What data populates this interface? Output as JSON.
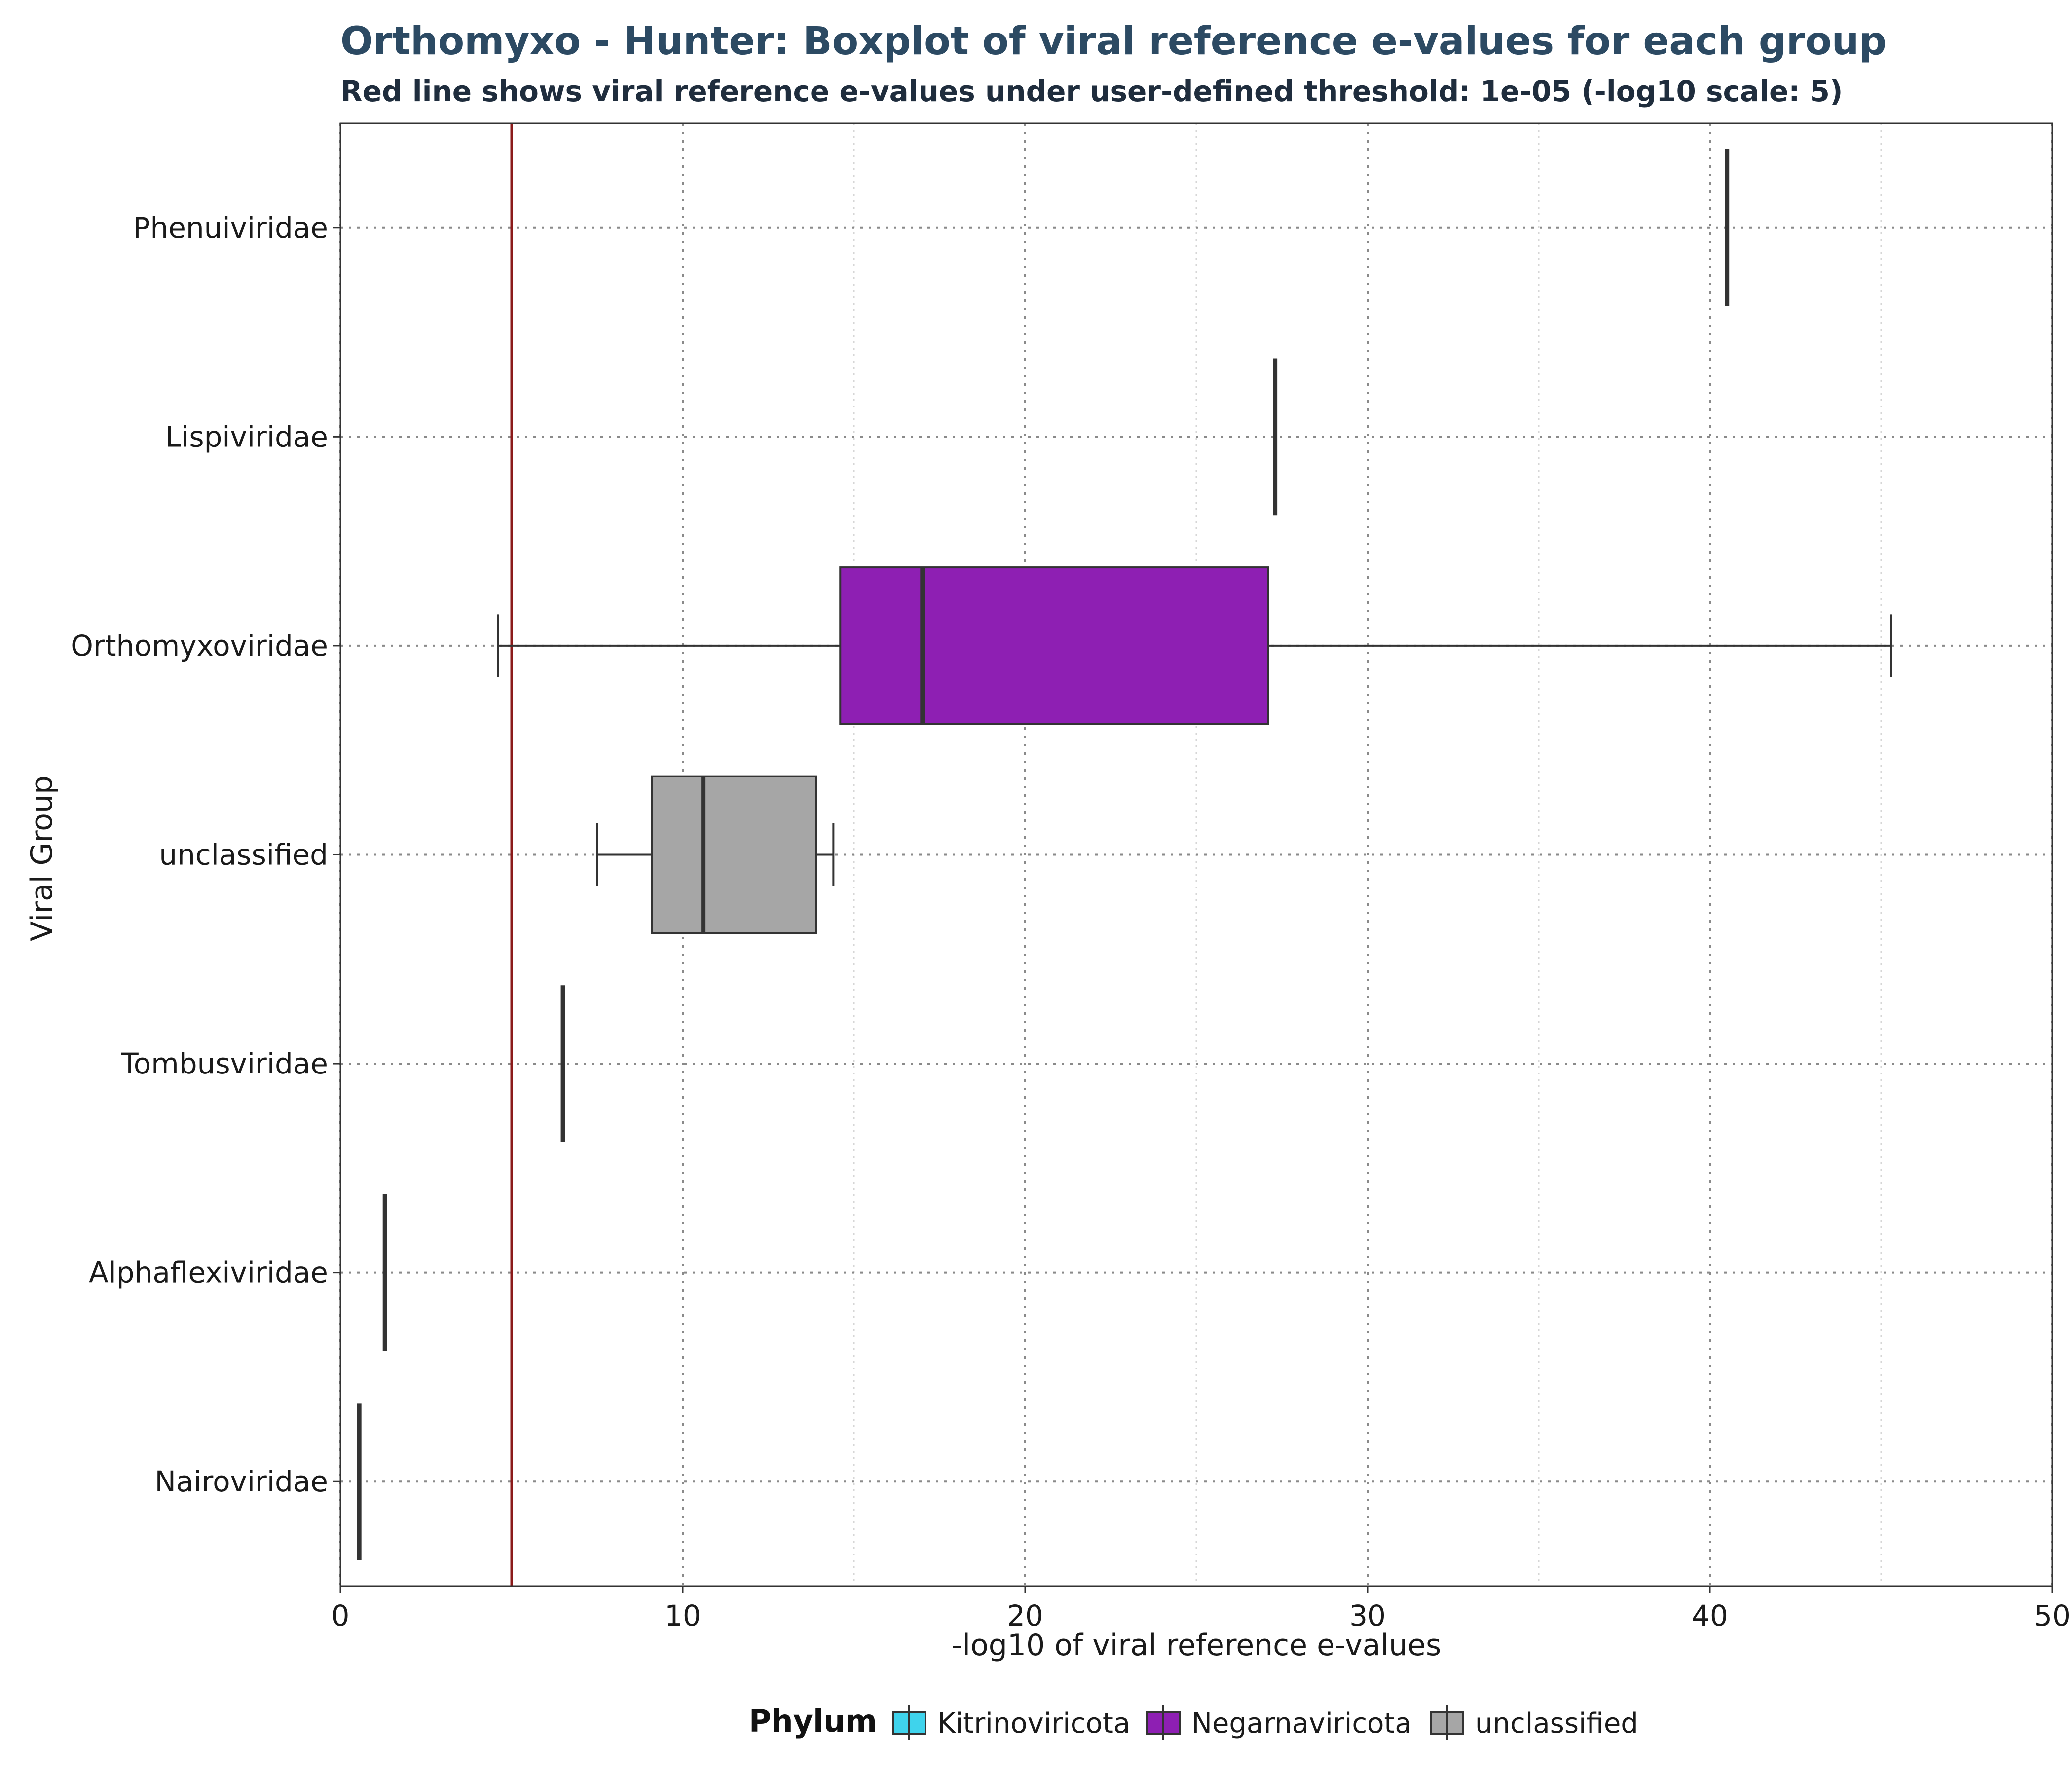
{
  "chart_data": {
    "type": "boxplot",
    "title": "Orthomyxo - Hunter: Boxplot of viral reference e-values for each group",
    "subtitle": "Red line shows viral reference e-values under user-defined threshold: 1e-05 (-log10 scale: 5)",
    "xlabel": "-log10 of viral reference e-values",
    "ylabel": "Viral Group",
    "xlim": [
      0,
      50
    ],
    "x_ticks": [
      0,
      10,
      20,
      30,
      40,
      50
    ],
    "grid": true,
    "threshold": {
      "value": 5,
      "color": "#8b1a1a"
    },
    "groups": [
      {
        "name": "Phenuiviridae",
        "phylum": "Negarnaviricota",
        "min": 40.5,
        "q1": 40.5,
        "median": 40.5,
        "q3": 40.5,
        "max": 40.5
      },
      {
        "name": "Lispiviridae",
        "phylum": "Negarnaviricota",
        "min": 27.3,
        "q1": 27.3,
        "median": 27.3,
        "q3": 27.3,
        "max": 27.3
      },
      {
        "name": "Orthomyxoviridae",
        "phylum": "Negarnaviricota",
        "min": 4.6,
        "q1": 14.6,
        "median": 17.0,
        "q3": 27.1,
        "max": 45.3
      },
      {
        "name": "unclassified",
        "phylum": "unclassified",
        "min": 7.5,
        "q1": 9.1,
        "median": 10.6,
        "q3": 13.9,
        "max": 14.4
      },
      {
        "name": "Tombusviridae",
        "phylum": "Kitrinoviricota",
        "min": 6.5,
        "q1": 6.5,
        "median": 6.5,
        "q3": 6.5,
        "max": 6.5
      },
      {
        "name": "Alphaflexiviridae",
        "phylum": "Kitrinoviricota",
        "min": 1.3,
        "q1": 1.3,
        "median": 1.3,
        "q3": 1.3,
        "max": 1.3
      },
      {
        "name": "Nairoviridae",
        "phylum": "Negarnaviricota",
        "min": 0.55,
        "q1": 0.55,
        "median": 0.55,
        "q3": 0.55,
        "max": 0.55
      }
    ],
    "legend": {
      "title": "Phylum",
      "position": "bottom",
      "entries": [
        {
          "label": "Kitrinoviricota",
          "color": "#3fd3ec"
        },
        {
          "label": "Negarnaviricota",
          "color": "#8e1fb3"
        },
        {
          "label": "unclassified",
          "color": "#a6a6a6"
        }
      ]
    }
  }
}
